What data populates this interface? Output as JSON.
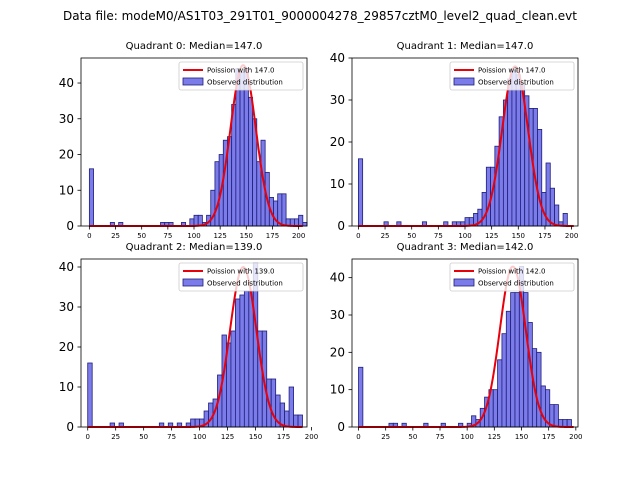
{
  "suptitle": "Data file: modeM0/AS1T03_291T01_9000004278_29857cztM0_level2_quad_clean.evt",
  "colors": {
    "bar_fill": "#7b7bea",
    "bar_edge": "#1f1f7a",
    "poisson": "#e8000b",
    "axes": "#000000"
  },
  "chart_data": [
    {
      "type": "bar",
      "title": "Quadrant 0: Median=147.0",
      "xlim": [
        -8,
        208
      ],
      "ylim": [
        0,
        47
      ],
      "xticks": [
        0,
        25,
        50,
        75,
        100,
        125,
        150,
        175,
        200
      ],
      "yticks": [
        0,
        10,
        20,
        30,
        40
      ],
      "bin_width": 4,
      "bins": [
        [
          0,
          16
        ],
        [
          20,
          1
        ],
        [
          28,
          1
        ],
        [
          68,
          1
        ],
        [
          72,
          1
        ],
        [
          76,
          1
        ],
        [
          88,
          1
        ],
        [
          96,
          2
        ],
        [
          100,
          3
        ],
        [
          104,
          3
        ],
        [
          108,
          1
        ],
        [
          112,
          3
        ],
        [
          116,
          10
        ],
        [
          120,
          18
        ],
        [
          124,
          20
        ],
        [
          128,
          24
        ],
        [
          132,
          25
        ],
        [
          136,
          34
        ],
        [
          140,
          44
        ],
        [
          144,
          43
        ],
        [
          148,
          44
        ],
        [
          152,
          36
        ],
        [
          156,
          30
        ],
        [
          160,
          18
        ],
        [
          164,
          24
        ],
        [
          168,
          15
        ],
        [
          172,
          8
        ],
        [
          176,
          7
        ],
        [
          180,
          9
        ],
        [
          184,
          9
        ],
        [
          188,
          2
        ],
        [
          192,
          2
        ],
        [
          196,
          2
        ],
        [
          200,
          3
        ],
        [
          204,
          1
        ]
      ],
      "legend": [
        "Poission with 147.0",
        "Observed distribution"
      ],
      "poisson_mean": 147.0,
      "poisson_peak": 45
    },
    {
      "type": "bar",
      "title": "Quadrant 1: Median=147.0",
      "xlim": [
        -6,
        206
      ],
      "ylim": [
        0,
        40
      ],
      "xticks": [
        0,
        25,
        50,
        75,
        100,
        125,
        150,
        175,
        200
      ],
      "yticks": [
        0,
        10,
        20,
        30,
        40
      ],
      "bin_width": 4,
      "bins": [
        [
          0,
          16
        ],
        [
          24,
          1
        ],
        [
          36,
          1
        ],
        [
          60,
          1
        ],
        [
          80,
          1
        ],
        [
          88,
          1
        ],
        [
          92,
          1
        ],
        [
          96,
          1
        ],
        [
          100,
          2
        ],
        [
          104,
          2
        ],
        [
          108,
          3
        ],
        [
          112,
          4
        ],
        [
          116,
          8
        ],
        [
          120,
          14
        ],
        [
          124,
          14
        ],
        [
          128,
          19
        ],
        [
          132,
          26
        ],
        [
          136,
          30
        ],
        [
          140,
          35
        ],
        [
          144,
          37
        ],
        [
          148,
          36
        ],
        [
          152,
          34
        ],
        [
          156,
          31
        ],
        [
          160,
          28
        ],
        [
          164,
          28
        ],
        [
          168,
          23
        ],
        [
          172,
          8
        ],
        [
          176,
          15
        ],
        [
          180,
          9
        ],
        [
          184,
          5
        ],
        [
          188,
          1
        ],
        [
          192,
          3
        ]
      ],
      "legend": [
        "Poission with 147.0",
        "Observed distribution"
      ],
      "poisson_mean": 147.0,
      "poisson_peak": 38
    },
    {
      "type": "bar",
      "title": "Quadrant 2: Median=139.0",
      "xlim": [
        -6,
        196
      ],
      "ylim": [
        0,
        42
      ],
      "xticks": [
        0,
        25,
        50,
        75,
        100,
        125,
        150,
        175,
        200
      ],
      "yticks": [
        0,
        10,
        20,
        30,
        40
      ],
      "bin_width": 4,
      "bins": [
        [
          0,
          16
        ],
        [
          20,
          1
        ],
        [
          28,
          1
        ],
        [
          64,
          1
        ],
        [
          72,
          1
        ],
        [
          80,
          1
        ],
        [
          88,
          1
        ],
        [
          92,
          2
        ],
        [
          96,
          2
        ],
        [
          100,
          2
        ],
        [
          104,
          4
        ],
        [
          108,
          6
        ],
        [
          112,
          7
        ],
        [
          116,
          13
        ],
        [
          120,
          23
        ],
        [
          124,
          21
        ],
        [
          128,
          24
        ],
        [
          132,
          32
        ],
        [
          136,
          33
        ],
        [
          140,
          34
        ],
        [
          144,
          34
        ],
        [
          148,
          41
        ],
        [
          152,
          24
        ],
        [
          156,
          24
        ],
        [
          160,
          12
        ],
        [
          164,
          12
        ],
        [
          168,
          8
        ],
        [
          172,
          6
        ],
        [
          176,
          4
        ],
        [
          180,
          10
        ],
        [
          184,
          3
        ],
        [
          188,
          3
        ]
      ],
      "legend": [
        "Poission with 139.0",
        "Observed distribution"
      ],
      "poisson_mean": 139.0,
      "poisson_peak": 40
    },
    {
      "type": "bar",
      "title": "Quadrant 3: Median=142.0",
      "xlim": [
        -6,
        202
      ],
      "ylim": [
        0,
        45
      ],
      "xticks": [
        0,
        25,
        50,
        75,
        100,
        125,
        150,
        175,
        200
      ],
      "yticks": [
        0,
        10,
        20,
        30,
        40
      ],
      "bin_width": 4,
      "bins": [
        [
          0,
          16
        ],
        [
          28,
          1
        ],
        [
          32,
          1
        ],
        [
          40,
          1
        ],
        [
          60,
          1
        ],
        [
          76,
          1
        ],
        [
          92,
          1
        ],
        [
          100,
          1
        ],
        [
          104,
          3
        ],
        [
          108,
          2
        ],
        [
          112,
          5
        ],
        [
          116,
          8
        ],
        [
          120,
          10
        ],
        [
          124,
          10
        ],
        [
          128,
          18
        ],
        [
          132,
          25
        ],
        [
          136,
          31
        ],
        [
          140,
          36
        ],
        [
          144,
          36
        ],
        [
          148,
          43
        ],
        [
          152,
          36
        ],
        [
          156,
          28
        ],
        [
          160,
          21
        ],
        [
          164,
          20
        ],
        [
          168,
          11
        ],
        [
          172,
          10
        ],
        [
          176,
          6
        ],
        [
          180,
          6
        ],
        [
          184,
          2
        ],
        [
          188,
          2
        ],
        [
          192,
          2
        ]
      ],
      "legend": [
        "Poission with 142.0",
        "Observed distribution"
      ],
      "poisson_mean": 142.0,
      "poisson_peak": 43
    }
  ]
}
